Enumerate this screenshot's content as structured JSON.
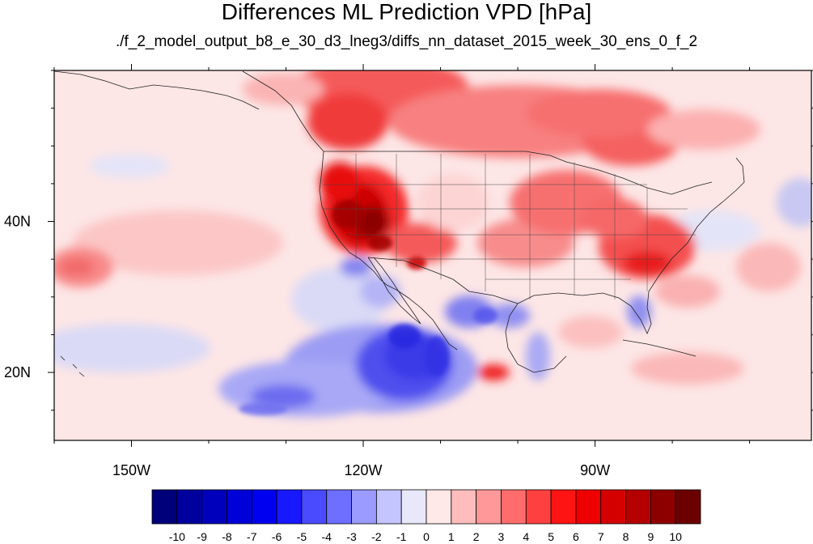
{
  "title": "Differences ML Prediction VPD [hPa]",
  "subtitle": "./f_2_model_output_b8_e_30_d3_lneg3/diffs_nn_dataset_2015_week_30_ens_0_f_2",
  "map": {
    "lon_range": [
      -160,
      -62
    ],
    "lat_range": [
      11,
      60
    ],
    "lon_ticks": [
      {
        "value": -150,
        "label": "150W"
      },
      {
        "value": -120,
        "label": "120W"
      },
      {
        "value": -90,
        "label": "90W"
      }
    ],
    "lat_ticks": [
      {
        "value": 40,
        "label": "40N"
      },
      {
        "value": 20,
        "label": "20N"
      }
    ]
  },
  "colorbar": {
    "labels": [
      "-10",
      "-9",
      "-8",
      "-7",
      "-6",
      "-5",
      "-4",
      "-3",
      "-2",
      "-1",
      "0",
      "1",
      "2",
      "3",
      "4",
      "5",
      "6",
      "7",
      "8",
      "9",
      "10"
    ],
    "colors": [
      "#00007a",
      "#00009c",
      "#0000bc",
      "#0000d8",
      "#0000f0",
      "#1818ff",
      "#4a4aff",
      "#6e6eff",
      "#9a9aff",
      "#c4c4ff",
      "#e8e8fa",
      "#ffe8e8",
      "#ffbcbc",
      "#ff9898",
      "#ff6c6c",
      "#ff4040",
      "#ff1414",
      "#ee0000",
      "#d40000",
      "#b40000",
      "#8c0000",
      "#6c0000"
    ]
  }
}
